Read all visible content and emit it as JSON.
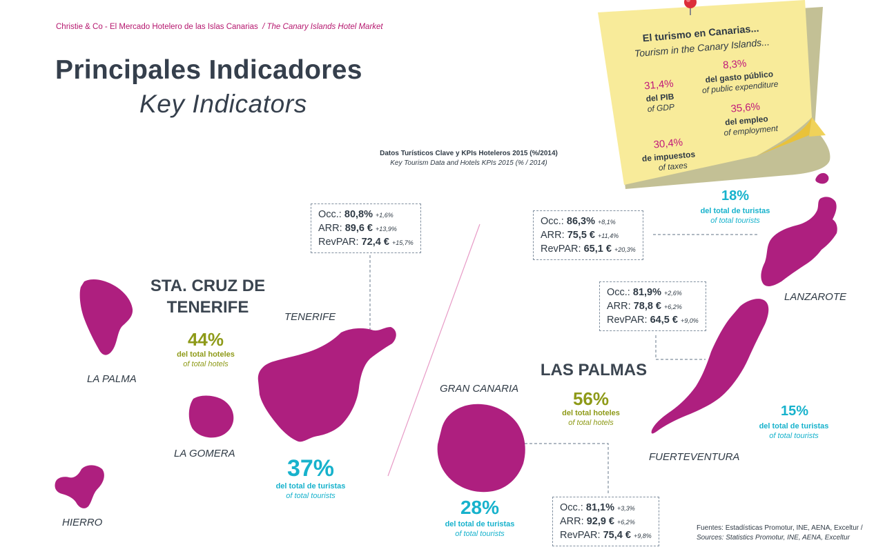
{
  "header": {
    "source_es": "Christie & Co - El Mercado Hotelero de las Islas Canarias",
    "source_en": "/ The Canary Islands Hotel Market"
  },
  "title": {
    "es": "Principales Indicadores",
    "en": "Key Indicators"
  },
  "subtitle": {
    "es": "Datos Turísticos Clave y KPIs Hoteleros 2015 (%/2014)",
    "en": "Key Tourism Data and Hotels KPIs 2015 (% / 2014)"
  },
  "sticky_note": {
    "title": "El turismo en Canarias...",
    "subtitle": "Tourism in the Canary Islands...",
    "gdp": {
      "value": "31,4%",
      "label": "del PIB",
      "label_en": "of GDP"
    },
    "public_expenditure": {
      "value": "8,3%",
      "label": "del gasto público",
      "label_en": "of public expenditure"
    },
    "employment": {
      "value": "35,6%",
      "label": "del empleo",
      "label_en": "of employment"
    },
    "taxes": {
      "value": "30,4%",
      "label": "de impuestos",
      "label_en": "of taxes"
    }
  },
  "tenerife_province": {
    "title_line1": "STA. CRUZ DE",
    "title_line2": "TENERIFE",
    "hotels_pct": "44%",
    "hotels_label": "del total hoteles",
    "hotels_label_en": "of total hotels",
    "tourists_pct": "37%",
    "tourists_label": "del total de turistas",
    "tourists_label_en": "of total tourists"
  },
  "las_palmas_province": {
    "title": "LAS PALMAS",
    "hotels_pct": "56%",
    "hotels_label": "del total hoteles",
    "hotels_label_en": "of total hotels"
  },
  "islands": {
    "la_palma": "LA PALMA",
    "la_gomera": "LA GOMERA",
    "hierro": "HIERRO",
    "tenerife": "TENERIFE",
    "gran_canaria": "GRAN CANARIA",
    "lanzarote": "LANZAROTE",
    "fuerteventura": "FUERTEVENTURA"
  },
  "kpi_labels": {
    "occ": "Occ.:",
    "arr": "ARR:",
    "revpar": "RevPAR:"
  },
  "kpis": {
    "tenerife": {
      "occ": "80,8%",
      "occ_ch": "+1,6%",
      "arr": "89,6 €",
      "arr_ch": "+13,9%",
      "revpar": "72,4 €",
      "revpar_ch": "+15,7%"
    },
    "lanzarote": {
      "occ": "86,3%",
      "occ_ch": "+8,1%",
      "arr": "75,5 €",
      "arr_ch": "+11,4%",
      "revpar": "65,1 €",
      "revpar_ch": "+20,3%"
    },
    "fuerteventura": {
      "occ": "81,9%",
      "occ_ch": "+2,6%",
      "arr": "78,8 €",
      "arr_ch": "+6,2%",
      "revpar": "64,5 €",
      "revpar_ch": "+9,0%"
    },
    "gran_canaria": {
      "occ": "81,1%",
      "occ_ch": "+3,3%",
      "arr": "92,9 €",
      "arr_ch": "+6,2%",
      "revpar": "75,4 €",
      "revpar_ch": "+9,8%"
    }
  },
  "tourist_shares": {
    "lanzarote": {
      "pct": "18%",
      "label": "del total de turistas",
      "label_en": "of total tourists"
    },
    "fuerteventura": {
      "pct": "15%",
      "label": "del total de turistas",
      "label_en": "of total tourists"
    },
    "gran_canaria": {
      "pct": "28%",
      "label": "del total de turistas",
      "label_en": "of total tourists"
    }
  },
  "sources": {
    "es": "Fuentes: Estadísticas Promotur, INE, AENA, Exceltur /",
    "en": "Sources: Statistics Promotur, INE, AENA, Exceltur"
  },
  "colors": {
    "island_fill": "#ae1f7f",
    "accent_magenta": "#c0187a",
    "green": "#8e9a18",
    "cyan": "#17b2cc",
    "note_yellow": "#f8eb9a"
  }
}
